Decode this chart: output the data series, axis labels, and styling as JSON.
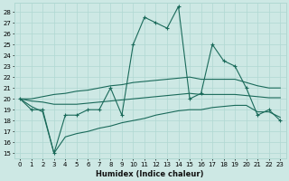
{
  "xlabel": "Humidex (Indice chaleur)",
  "background_color": "#cde8e4",
  "grid_color": "#b0d8d2",
  "line_color": "#1a6a5a",
  "xlim": [
    -0.5,
    23.5
  ],
  "ylim": [
    14.5,
    28.8
  ],
  "yticks": [
    15,
    16,
    17,
    18,
    19,
    20,
    21,
    22,
    23,
    24,
    25,
    26,
    27,
    28
  ],
  "xticks": [
    0,
    1,
    2,
    3,
    4,
    5,
    6,
    7,
    8,
    9,
    10,
    11,
    12,
    13,
    14,
    15,
    16,
    17,
    18,
    19,
    20,
    21,
    22,
    23
  ],
  "series": [
    [
      20,
      19,
      19,
      15,
      18.5,
      18.5,
      19,
      19,
      21,
      18.5,
      25,
      27.5,
      27,
      26.5,
      28.5,
      20,
      20.5,
      25,
      23.5,
      23,
      21,
      18.5,
      19,
      18
    ],
    [
      20,
      20,
      20.2,
      20.4,
      20.5,
      20.7,
      20.8,
      21,
      21.2,
      21.3,
      21.5,
      21.6,
      21.7,
      21.8,
      21.9,
      22,
      21.8,
      21.8,
      21.8,
      21.8,
      21.5,
      21.2,
      21.0,
      21.0
    ],
    [
      20,
      19.8,
      19.7,
      19.5,
      19.5,
      19.5,
      19.6,
      19.7,
      19.8,
      19.9,
      20.0,
      20.1,
      20.2,
      20.3,
      20.4,
      20.5,
      20.4,
      20.4,
      20.4,
      20.4,
      20.3,
      20.2,
      20.1,
      20.1
    ],
    [
      20,
      19.3,
      18.8,
      15.0,
      16.5,
      16.8,
      17.0,
      17.3,
      17.5,
      17.8,
      18.0,
      18.2,
      18.5,
      18.7,
      18.9,
      19.0,
      19.0,
      19.2,
      19.3,
      19.4,
      19.4,
      18.8,
      18.8,
      18.3
    ]
  ]
}
